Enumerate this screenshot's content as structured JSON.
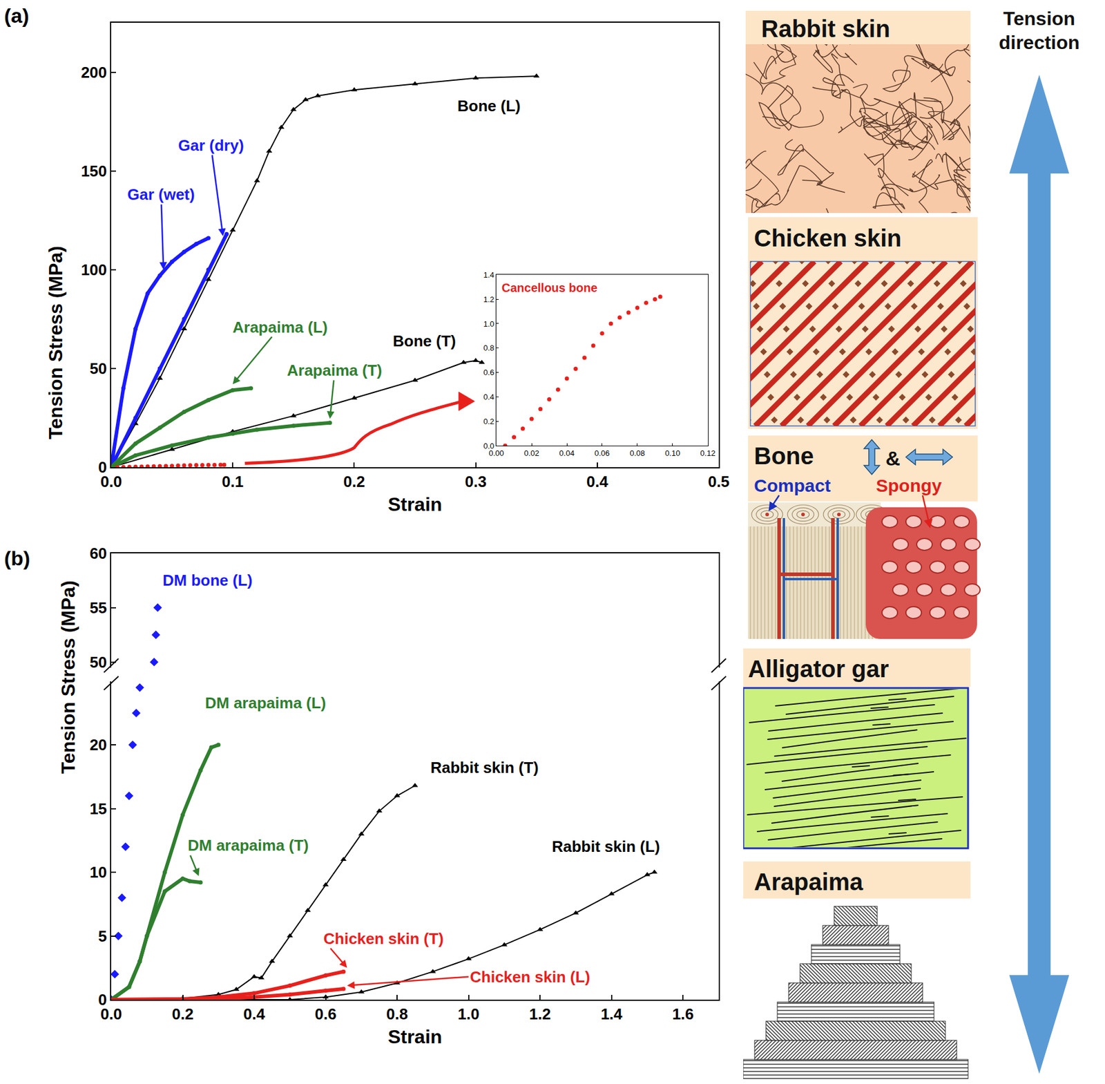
{
  "chart_data": [
    {
      "type": "line",
      "title": "(a)",
      "xlabel": "Strain",
      "ylabel": "Tension Stress (MPa)",
      "xlim": [
        0,
        0.5
      ],
      "ylim": [
        0,
        225
      ],
      "xticks": [
        {
          "value": 0,
          "label": "0.0"
        },
        0.1,
        0.2,
        0.3,
        0.4,
        0.5
      ],
      "yticks": [
        0,
        50,
        100,
        150,
        200
      ],
      "grid": false,
      "series": [
        {
          "name": "Bone (L)",
          "color": "#000000",
          "marker": "triangle",
          "line_style": "solid",
          "x": [
            0,
            0.02,
            0.04,
            0.06,
            0.08,
            0.1,
            0.12,
            0.13,
            0.14,
            0.15,
            0.16,
            0.17,
            0.2,
            0.25,
            0.3,
            0.35
          ],
          "values": [
            0,
            22,
            45,
            70,
            95,
            120,
            145,
            160,
            172,
            181,
            186,
            188,
            191,
            194,
            197,
            198
          ]
        },
        {
          "name": "Gar (wet)",
          "color": "#1a1aff",
          "marker": "circle",
          "line_style": "solid",
          "x": [
            0,
            0.01,
            0.02,
            0.03,
            0.04,
            0.05,
            0.06,
            0.07,
            0.08
          ],
          "values": [
            0,
            40,
            70,
            88,
            97,
            104,
            109,
            113,
            116
          ]
        },
        {
          "name": "Gar (dry)",
          "color": "#1a1aff",
          "marker": "circle",
          "line_style": "solid",
          "x": [
            0,
            0.02,
            0.04,
            0.06,
            0.08,
            0.095
          ],
          "values": [
            0,
            25,
            50,
            75,
            100,
            118
          ]
        },
        {
          "name": "Arapaima (L)",
          "color": "#2f7f2f",
          "marker": "circle",
          "line_style": "solid",
          "x": [
            0,
            0.02,
            0.04,
            0.06,
            0.08,
            0.1,
            0.115
          ],
          "values": [
            0,
            12,
            20,
            28,
            34,
            39,
            40
          ]
        },
        {
          "name": "Bone (T)",
          "color": "#000000",
          "marker": "triangle",
          "line_style": "solid",
          "x": [
            0,
            0.05,
            0.1,
            0.15,
            0.2,
            0.25,
            0.29,
            0.3,
            0.305
          ],
          "values": [
            0,
            9,
            18,
            26,
            35,
            44,
            53,
            54,
            53
          ]
        },
        {
          "name": "Arapaima (T)",
          "color": "#2f7f2f",
          "marker": "circle",
          "line_style": "solid",
          "x": [
            0,
            0.02,
            0.05,
            0.08,
            0.1,
            0.12,
            0.15,
            0.18
          ],
          "values": [
            0,
            6,
            11,
            15,
            17,
            19,
            21,
            22.5
          ]
        }
      ]
    },
    {
      "type": "line",
      "xlim": [
        0,
        0.12
      ],
      "ylim": [
        0,
        1.4
      ],
      "xticks": [
        {
          "value": 0,
          "label": "0.00"
        },
        0.02,
        0.04,
        0.06,
        0.08,
        {
          "value": 0.1,
          "label": "0.10"
        },
        0.12
      ],
      "yticks": [
        {
          "value": 0,
          "label": "0.0"
        },
        0.2,
        0.4,
        0.6,
        0.8,
        {
          "value": 1,
          "label": "1.0"
        },
        1.2,
        1.4
      ],
      "grid": false,
      "series": [
        {
          "name": "Cancellous bone",
          "color": "#e8201c",
          "marker": "circle",
          "line_style": "none",
          "x": [
            0.005,
            0.01,
            0.015,
            0.02,
            0.025,
            0.03,
            0.035,
            0.04,
            0.045,
            0.05,
            0.055,
            0.06,
            0.065,
            0.07,
            0.075,
            0.08,
            0.085,
            0.09,
            0.093
          ],
          "values": [
            0,
            0.07,
            0.14,
            0.22,
            0.3,
            0.38,
            0.46,
            0.55,
            0.63,
            0.72,
            0.82,
            0.92,
            1.0,
            1.05,
            1.09,
            1.13,
            1.17,
            1.2,
            1.22
          ]
        }
      ]
    },
    {
      "type": "line",
      "title": "(b)",
      "xlabel": "Strain",
      "ylabel": "Tension Stress (MPa)",
      "xlim": [
        0,
        1.7
      ],
      "ylim": [
        [
          0,
          25
        ],
        [
          49.5,
          60
        ]
      ],
      "xticks": [
        {
          "value": 0,
          "label": "0.0"
        },
        0.2,
        0.4,
        0.6,
        0.8,
        {
          "value": 1,
          "label": "1.0"
        },
        1.2,
        1.4,
        1.6
      ],
      "yticks": [
        [
          0,
          5,
          10,
          15,
          20
        ],
        [
          50,
          55,
          60
        ]
      ],
      "grid": false,
      "series": [
        {
          "name": "DM bone (L)",
          "color": "#1a1aff",
          "marker": "diamond",
          "line_style": "none",
          "x": [
            0,
            0.01,
            0.02,
            0.03,
            0.04,
            0.05,
            0.06,
            0.07,
            0.08,
            0.12,
            0.125,
            0.13
          ],
          "values": [
            0,
            2,
            5,
            8,
            12,
            16,
            20,
            22.5,
            24.5,
            50,
            52.5,
            55
          ]
        },
        {
          "name": "DM arapaima (L)",
          "color": "#2f7f2f",
          "marker": "circle",
          "line_style": "solid",
          "x": [
            0,
            0.05,
            0.08,
            0.1,
            0.15,
            0.2,
            0.25,
            0.28,
            0.3
          ],
          "values": [
            0,
            1,
            3,
            5,
            10,
            14.5,
            18,
            19.8,
            20
          ]
        },
        {
          "name": "DM arapaima (T)",
          "color": "#2f7f2f",
          "marker": "circle",
          "line_style": "solid",
          "x": [
            0,
            0.05,
            0.08,
            0.1,
            0.15,
            0.2,
            0.22,
            0.25
          ],
          "values": [
            0,
            1,
            3,
            5,
            8.5,
            9.5,
            9.3,
            9.2
          ]
        },
        {
          "name": "Rabbit skin (T)",
          "color": "#000000",
          "marker": "triangle",
          "line_style": "solid",
          "x": [
            0,
            0.2,
            0.3,
            0.35,
            0.4,
            0.42,
            0.45,
            0.5,
            0.55,
            0.6,
            0.65,
            0.7,
            0.75,
            0.8,
            0.85
          ],
          "values": [
            0,
            0.1,
            0.4,
            0.8,
            1.8,
            1.7,
            3,
            5,
            7,
            9,
            11,
            13,
            14.8,
            16,
            16.8
          ]
        },
        {
          "name": "Rabbit skin (L)",
          "color": "#000000",
          "marker": "triangle",
          "line_style": "solid",
          "x": [
            0,
            0.5,
            0.6,
            0.7,
            0.8,
            0.9,
            1,
            1.1,
            1.2,
            1.3,
            1.4,
            1.5,
            1.52
          ],
          "values": [
            0,
            0,
            0.2,
            0.6,
            1.3,
            2.2,
            3.2,
            4.3,
            5.5,
            6.8,
            8.3,
            9.8,
            10
          ]
        },
        {
          "name": "Chicken skin (T)",
          "color": "#e8201c",
          "marker": "circle",
          "line_style": "solid",
          "x": [
            0,
            0.2,
            0.3,
            0.4,
            0.5,
            0.6,
            0.65
          ],
          "values": [
            0,
            0.05,
            0.2,
            0.5,
            1.1,
            1.9,
            2.2
          ]
        },
        {
          "name": "Chicken skin (L)",
          "color": "#e8201c",
          "marker": "circle",
          "line_style": "solid",
          "x": [
            0,
            0.3,
            0.4,
            0.5,
            0.6,
            0.65
          ],
          "values": [
            0,
            0.05,
            0.2,
            0.4,
            0.7,
            0.85
          ]
        }
      ]
    }
  ],
  "diagram": {
    "panels": [
      {
        "title": "Rabbit skin"
      },
      {
        "title": "Chicken skin"
      },
      {
        "title": "Bone",
        "joiner": "&",
        "labels": [
          {
            "text": "Compact",
            "color": "#1a2fbf"
          },
          {
            "text": "Spongy",
            "color": "#e0201c"
          }
        ]
      },
      {
        "title": "Alligator gar"
      },
      {
        "title": "Arapaima"
      }
    ],
    "arrow_label": "Tension direction"
  }
}
